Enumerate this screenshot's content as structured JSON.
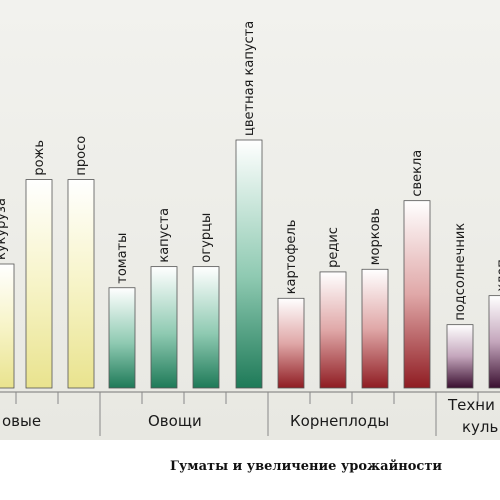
{
  "chart_data": {
    "type": "bar",
    "title": "Гуматы и увеличение урожайности",
    "xlabel": "",
    "ylabel": "",
    "ylim": [
      0,
      100
    ],
    "categories": [
      "кукуруза",
      "рожь",
      "просо",
      "томаты",
      "капуста",
      "огурцы",
      "цветная капуста",
      "картофель",
      "редис",
      "морковь",
      "свекла",
      "подсолнечник",
      "хлопок"
    ],
    "values": [
      47,
      79,
      79,
      38,
      46,
      46,
      94,
      34,
      44,
      45,
      71,
      24,
      35
    ],
    "groups": [
      {
        "name": "…овые",
        "members": [
          "кукуруза",
          "рожь",
          "просо"
        ]
      },
      {
        "name": "Овощи",
        "members": [
          "томаты",
          "капуста",
          "огурцы",
          "цветная капуста"
        ]
      },
      {
        "name": "Корнеплоды",
        "members": [
          "картофель",
          "редис",
          "морковь",
          "свекла"
        ]
      },
      {
        "name": "Техни… куль…",
        "members": [
          "подсолнечник",
          "хлопок"
        ]
      }
    ],
    "colors": {
      "cereals": "#ece8a0",
      "vegetables": "#2f8a6a",
      "roots": "#9a2a2a",
      "technical": "#4a1a3a"
    },
    "grid": false,
    "legend": "none"
  },
  "labels": {
    "bar_labels": [
      "кукуруза",
      "рожь",
      "просо",
      "томаты",
      "капуста",
      "огурцы",
      "цветная капуста",
      "картофель",
      "редис",
      "морковь",
      "свекла",
      "подсолнечник",
      "хлоп…"
    ],
    "group_labels": [
      "овые",
      "Овощи",
      "Корнеплоды",
      "Техни",
      "куль"
    ],
    "caption": "Гуматы и увеличение урожайности"
  }
}
